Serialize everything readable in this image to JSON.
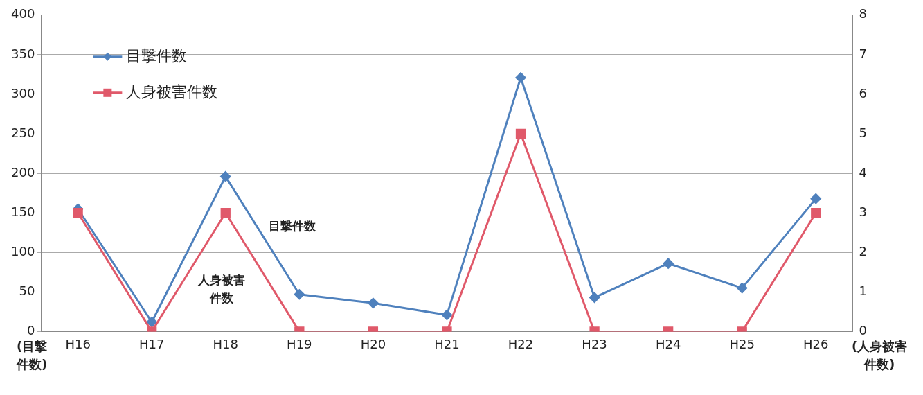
{
  "chart_data": {
    "type": "line",
    "categories": [
      "H16",
      "H17",
      "H18",
      "H19",
      "H20",
      "H21",
      "H22",
      "H23",
      "H24",
      "H25",
      "H26"
    ],
    "series": [
      {
        "name": "目撃件数",
        "color": "#4f81bd",
        "marker": "diamond",
        "values": [
          155,
          12,
          196,
          47,
          36,
          21,
          321,
          43,
          86,
          55,
          168
        ]
      },
      {
        "name": "人身被害件数",
        "color": "#e0596a",
        "marker": "square",
        "axis": "y2",
        "values": [
          3,
          0,
          3,
          0,
          0,
          0,
          5,
          0,
          0,
          0,
          3
        ]
      }
    ],
    "ylabel": "(目撃件数)",
    "y2label": "(人身被害件数)",
    "ylim": [
      0,
      400
    ],
    "yticks": [
      0,
      50,
      100,
      150,
      200,
      250,
      300,
      350,
      400
    ],
    "y2lim": [
      0,
      8
    ],
    "y2ticks": [
      0,
      1,
      2,
      3,
      4,
      5,
      6,
      7,
      8
    ],
    "annotations": [
      "目撃件数",
      "人身被害件数"
    ],
    "grid": "y",
    "legend": "top left",
    "line_style": "solid"
  }
}
